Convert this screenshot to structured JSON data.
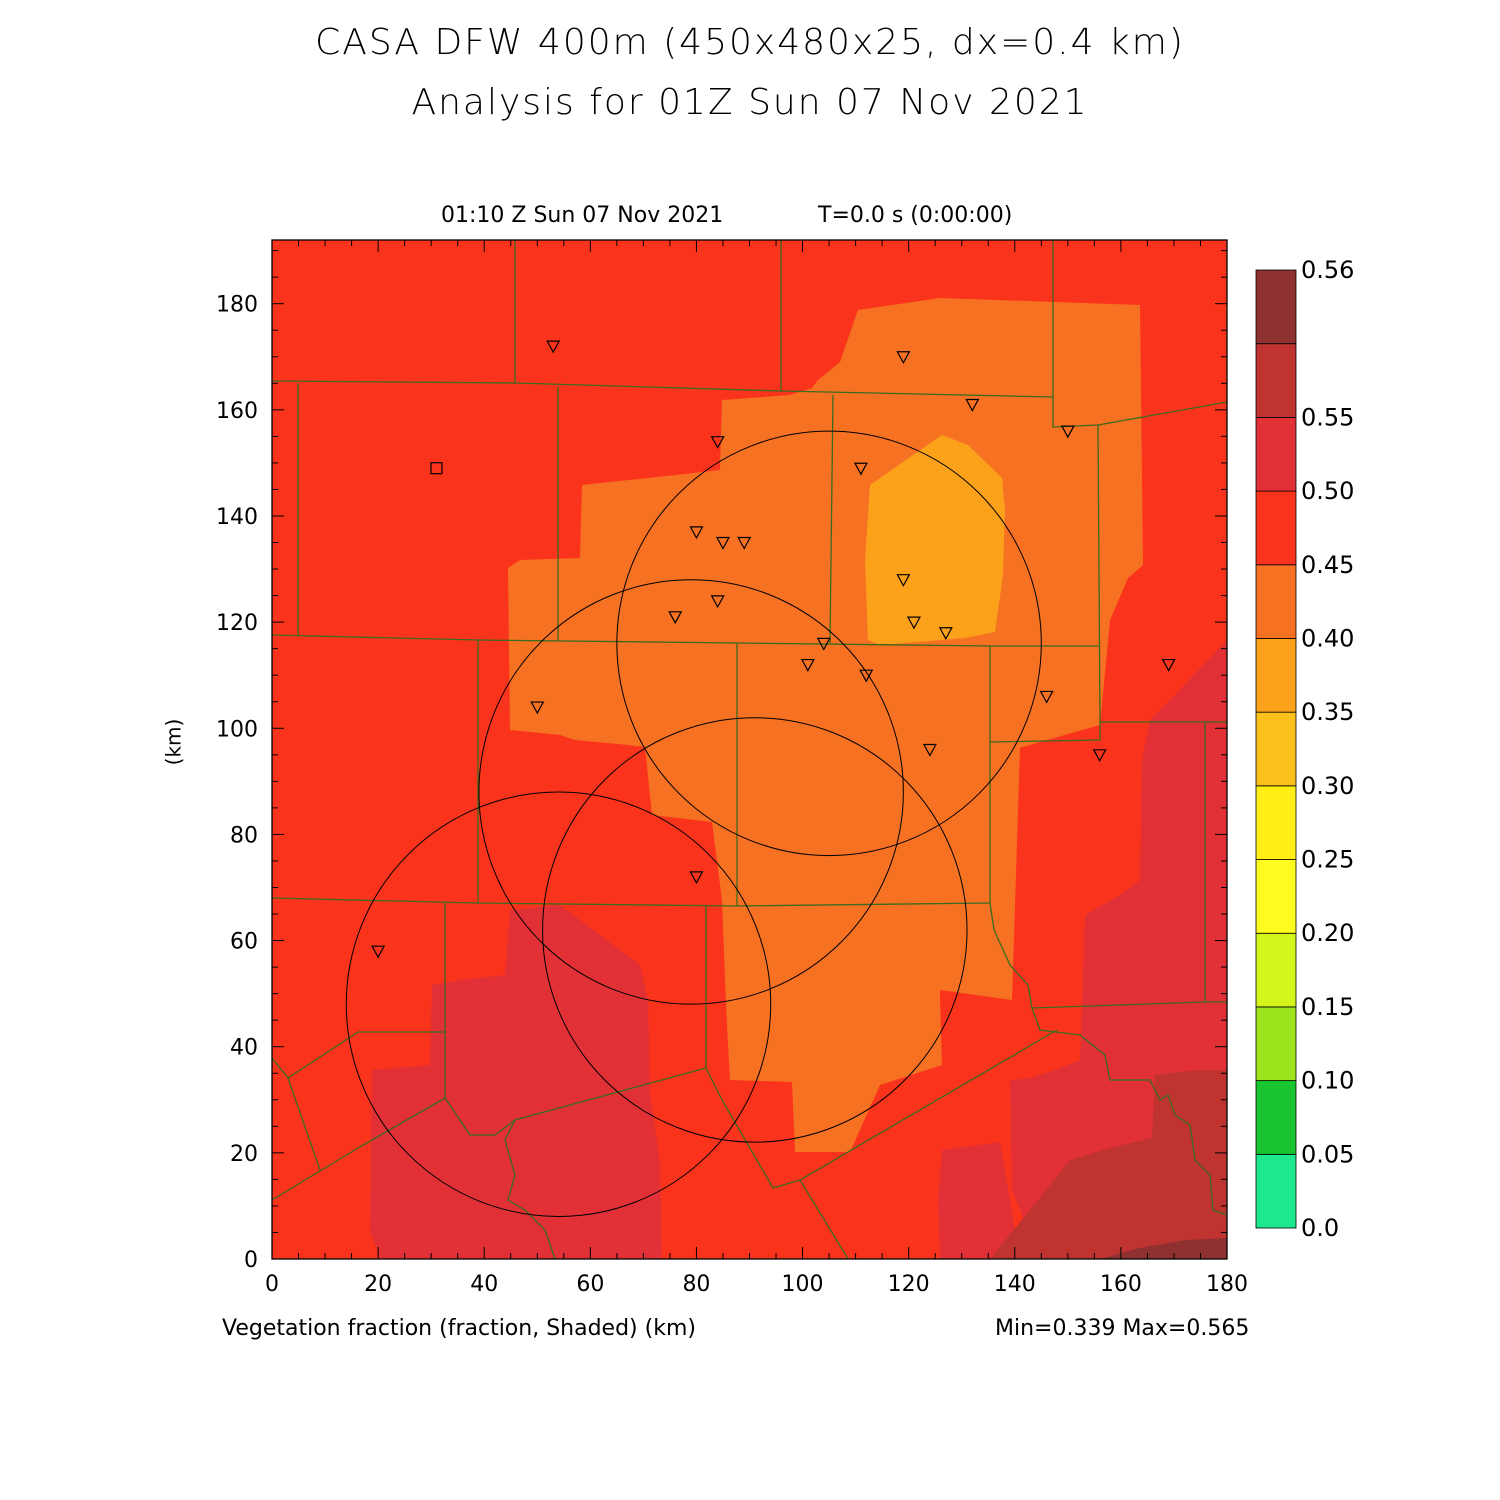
{
  "title": {
    "line1": "CASA DFW 400m (450x480x25, dx=0.4 km)",
    "line2": "Analysis for 01Z Sun 07 Nov 2021"
  },
  "subtitle": {
    "time": "01:10 Z Sun 07 Nov 2021",
    "elapsed": "T=0.0 s (0:00:00)"
  },
  "axes": {
    "y_label": "(km)",
    "x_ticks": [
      "0",
      "20",
      "40",
      "60",
      "80",
      "100",
      "120",
      "140",
      "160",
      "180"
    ],
    "y_ticks": [
      "0",
      "20",
      "40",
      "60",
      "80",
      "100",
      "120",
      "140",
      "160",
      "180"
    ]
  },
  "footer": {
    "field_label": "Vegetation fraction (fraction, Shaded)  (km)",
    "stats": "Min=0.339 Max=0.565"
  },
  "colorbar": {
    "labels": [
      "0.0",
      "0.05",
      "0.10",
      "0.15",
      "0.20",
      "0.25",
      "0.30",
      "0.35",
      "0.40",
      "0.45",
      "0.50",
      "0.55",
      "0.56"
    ],
    "colors": [
      "#1de88e",
      "#19c631",
      "#9be31c",
      "#d4f51a",
      "#fffb1e",
      "#ffef14",
      "#fbc01c",
      "#fba11a",
      "#f77122",
      "#fa341c",
      "#e13136",
      "#bf3331",
      "#8f3131"
    ]
  },
  "map": {
    "field_colors": {
      "v040": "#fa341c",
      "v035": "#f77122",
      "v030": "#fba11a",
      "v045": "#e13136",
      "v050": "#bf3331",
      "v055": "#8f3131"
    },
    "boundary_color": "#3a6b1e",
    "radar_range_circles_km": [
      {
        "x": 105,
        "y": 116,
        "r": 40
      },
      {
        "x": 79,
        "y": 88,
        "r": 40
      },
      {
        "x": 91,
        "y": 62,
        "r": 40
      },
      {
        "x": 54,
        "y": 48,
        "r": 40
      }
    ],
    "station_markers_km": [
      [
        53,
        172
      ],
      [
        119,
        170
      ],
      [
        132,
        161
      ],
      [
        150,
        156
      ],
      [
        84,
        154
      ],
      [
        111,
        149
      ],
      [
        80,
        137
      ],
      [
        85,
        135
      ],
      [
        89,
        135
      ],
      [
        119,
        128
      ],
      [
        84,
        124
      ],
      [
        76,
        121
      ],
      [
        121,
        120
      ],
      [
        127,
        118
      ],
      [
        104,
        116
      ],
      [
        101,
        112
      ],
      [
        112,
        110
      ],
      [
        169,
        112
      ],
      [
        146,
        106
      ],
      [
        50,
        104
      ],
      [
        124,
        96
      ],
      [
        156,
        95
      ],
      [
        80,
        72
      ],
      [
        20,
        58
      ]
    ],
    "square_marker_km": [
      31,
      149
    ]
  }
}
